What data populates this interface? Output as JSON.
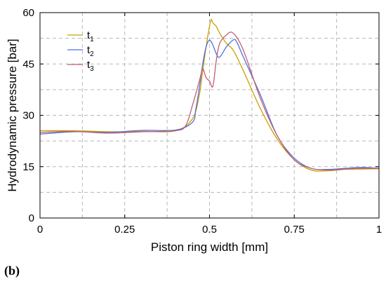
{
  "panel_label": {
    "open": "(",
    "letter": "b",
    "close": ")"
  },
  "chart_data": {
    "type": "line",
    "xlabel": "Piston ring width [mm]",
    "ylabel": "Hydrodynamic pressure [bar]",
    "xlim": [
      0,
      1
    ],
    "ylim": [
      0,
      60
    ],
    "xticks": [
      0,
      0.25,
      0.5,
      0.75,
      1
    ],
    "xtick_labels": [
      "0",
      "0.25",
      "0.5",
      "0.75",
      "1"
    ],
    "yticks": [
      0,
      15,
      30,
      45,
      60
    ],
    "ytick_labels": [
      "0",
      "15",
      "30",
      "45",
      "60"
    ],
    "grid": true,
    "legend_position": "top-left",
    "series": [
      {
        "name": "t",
        "subscript": "1",
        "color": "#c8a000",
        "x": [
          0,
          0.1,
          0.2,
          0.3,
          0.4,
          0.45,
          0.47,
          0.48,
          0.49,
          0.5,
          0.505,
          0.51,
          0.52,
          0.53,
          0.55,
          0.57,
          0.6,
          0.65,
          0.7,
          0.75,
          0.8,
          0.85,
          0.9,
          0.95,
          1
        ],
        "y": [
          25.5,
          25.5,
          25.2,
          25.3,
          25.5,
          29,
          36,
          43,
          50,
          56,
          58,
          57,
          56,
          54,
          51,
          49,
          43,
          32,
          23,
          17,
          14,
          13.8,
          14.2,
          14.3,
          14.4
        ]
      },
      {
        "name": "t",
        "subscript": "2",
        "color": "#5070e0",
        "x": [
          0,
          0.1,
          0.2,
          0.3,
          0.4,
          0.45,
          0.46,
          0.47,
          0.48,
          0.49,
          0.5,
          0.51,
          0.52,
          0.53,
          0.55,
          0.57,
          0.58,
          0.6,
          0.65,
          0.7,
          0.75,
          0.8,
          0.85,
          0.9,
          0.95,
          1
        ],
        "y": [
          24.5,
          25.2,
          25,
          25.6,
          25.7,
          28,
          32,
          38,
          45,
          50,
          52,
          50.5,
          48,
          47,
          50,
          52,
          51.5,
          47,
          36,
          24,
          17.5,
          14.5,
          14.2,
          14.5,
          14.8,
          14.5
        ]
      },
      {
        "name": "t",
        "subscript": "3",
        "color": "#c06070",
        "x": [
          0,
          0.1,
          0.2,
          0.3,
          0.4,
          0.43,
          0.45,
          0.47,
          0.48,
          0.49,
          0.5,
          0.51,
          0.52,
          0.53,
          0.55,
          0.57,
          0.6,
          0.65,
          0.7,
          0.75,
          0.8,
          0.85,
          0.9,
          0.95,
          1
        ],
        "y": [
          25,
          25.3,
          24.8,
          25.2,
          25.5,
          27,
          33,
          40,
          43.5,
          41,
          40,
          38.5,
          46,
          51,
          53.5,
          54,
          49,
          35,
          24,
          17,
          14.5,
          14,
          14.3,
          14.5,
          14.5
        ]
      }
    ]
  }
}
